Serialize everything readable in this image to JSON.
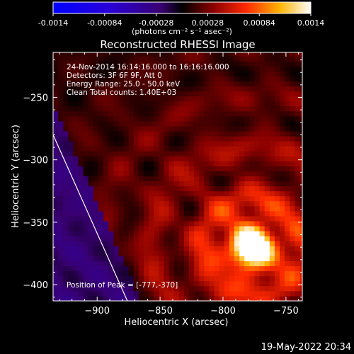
{
  "colorbar": {
    "tick_labels": [
      "-0.0014",
      "-0.00084",
      "-0.00028",
      "0.00028",
      "0.00084",
      "0.0014"
    ],
    "range": [
      -0.0014,
      0.0014
    ],
    "unit_label": "(photons cm⁻² s⁻¹ asec⁻²)"
  },
  "chart_data": {
    "type": "heatmap",
    "title": "Reconstructed RHESSI Image",
    "xlabel": "Heliocentric X (arcsec)",
    "ylabel": "Heliocentric Y (arcsec)",
    "xlim": [
      -935,
      -737
    ],
    "ylim": [
      -413,
      -214
    ],
    "x_ticks": [
      -900,
      -850,
      -800,
      -750
    ],
    "x_tick_labels": [
      "−900",
      "−850",
      "−800",
      "−750"
    ],
    "y_ticks": [
      -250,
      -300,
      -350,
      -400
    ],
    "y_tick_labels": [
      "−250",
      "−300",
      "−350",
      "−400"
    ],
    "grid": false,
    "peak": [
      -777,
      -370
    ],
    "value_range": [
      -0.0014,
      0.0014
    ],
    "annotations": [
      "24-Nov-2014 16:14:16.000 to 16:16:16.000",
      "Detectors: 3F 6F 9F, Att 0",
      "Energy Range: 25.0 - 50.0 keV",
      "Clean     Total counts: 1.40E+03"
    ],
    "peak_label": "Position of Peak = [-777,-370]",
    "limb_line": {
      "x": [
        -935,
        -876
      ],
      "y": [
        -280,
        -413
      ]
    }
  },
  "footer": {
    "timestamp": "19-May-2022 20:34"
  }
}
